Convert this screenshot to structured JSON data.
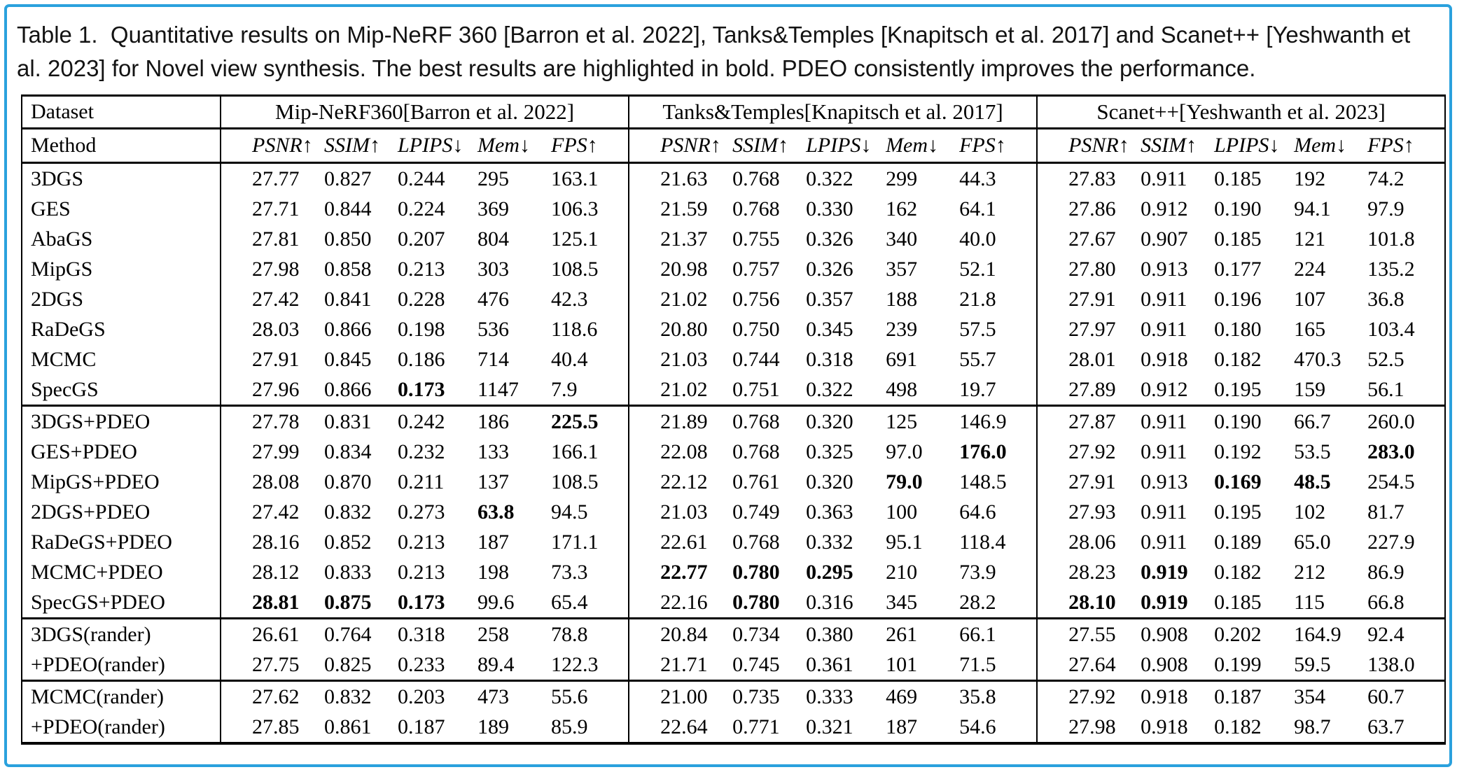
{
  "caption": {
    "text": "Table 1.  Quantitative results on Mip-NeRF 360 [Barron et al. 2022], Tanks&Temples [Knapitsch et al. 2017] and Scanet++ [Yeshwanth et al. 2023] for Novel view synthesis. The best results are highlighted in bold. PDEO consistently improves the performance."
  },
  "table": {
    "corner": {
      "dataset_label": "Dataset",
      "method_label": "Method"
    },
    "group_headers": [
      "Mip-NeRF360[Barron et al. 2022]",
      "Tanks&Temples[Knapitsch et al. 2017]",
      "Scanet++[Yeshwanth et al. 2023]"
    ],
    "metric_headers": [
      "PSNR↑",
      "SSIM↑",
      "LPIPS↓",
      "Mem↓",
      "FPS↑"
    ],
    "section_start_rows": [
      8,
      15,
      17
    ],
    "rows": [
      {
        "method": "3DGS",
        "values": [
          "27.77",
          "0.827",
          "0.244",
          "295",
          "163.1",
          "21.63",
          "0.768",
          "0.322",
          "299",
          "44.3",
          "27.83",
          "0.911",
          "0.185",
          "192",
          "74.2"
        ],
        "bold": []
      },
      {
        "method": "GES",
        "values": [
          "27.71",
          "0.844",
          "0.224",
          "369",
          "106.3",
          "21.59",
          "0.768",
          "0.330",
          "162",
          "64.1",
          "27.86",
          "0.912",
          "0.190",
          "94.1",
          "97.9"
        ],
        "bold": []
      },
      {
        "method": "AbaGS",
        "values": [
          "27.81",
          "0.850",
          "0.207",
          "804",
          "125.1",
          "21.37",
          "0.755",
          "0.326",
          "340",
          "40.0",
          "27.67",
          "0.907",
          "0.185",
          "121",
          "101.8"
        ],
        "bold": []
      },
      {
        "method": "MipGS",
        "values": [
          "27.98",
          "0.858",
          "0.213",
          "303",
          "108.5",
          "20.98",
          "0.757",
          "0.326",
          "357",
          "52.1",
          "27.80",
          "0.913",
          "0.177",
          "224",
          "135.2"
        ],
        "bold": []
      },
      {
        "method": "2DGS",
        "values": [
          "27.42",
          "0.841",
          "0.228",
          "476",
          "42.3",
          "21.02",
          "0.756",
          "0.357",
          "188",
          "21.8",
          "27.91",
          "0.911",
          "0.196",
          "107",
          "36.8"
        ],
        "bold": []
      },
      {
        "method": "RaDeGS",
        "values": [
          "28.03",
          "0.866",
          "0.198",
          "536",
          "118.6",
          "20.80",
          "0.750",
          "0.345",
          "239",
          "57.5",
          "27.97",
          "0.911",
          "0.180",
          "165",
          "103.4"
        ],
        "bold": []
      },
      {
        "method": "MCMC",
        "values": [
          "27.91",
          "0.845",
          "0.186",
          "714",
          "40.4",
          "21.03",
          "0.744",
          "0.318",
          "691",
          "55.7",
          "28.01",
          "0.918",
          "0.182",
          "470.3",
          "52.5"
        ],
        "bold": []
      },
      {
        "method": "SpecGS",
        "values": [
          "27.96",
          "0.866",
          "0.173",
          "1147",
          "7.9",
          "21.02",
          "0.751",
          "0.322",
          "498",
          "19.7",
          "27.89",
          "0.912",
          "0.195",
          "159",
          "56.1"
        ],
        "bold": [
          2
        ]
      },
      {
        "method": "3DGS+PDEO",
        "values": [
          "27.78",
          "0.831",
          "0.242",
          "186",
          "225.5",
          "21.89",
          "0.768",
          "0.320",
          "125",
          "146.9",
          "27.87",
          "0.911",
          "0.190",
          "66.7",
          "260.0"
        ],
        "bold": [
          4
        ]
      },
      {
        "method": "GES+PDEO",
        "values": [
          "27.99",
          "0.834",
          "0.232",
          "133",
          "166.1",
          "22.08",
          "0.768",
          "0.325",
          "97.0",
          "176.0",
          "27.92",
          "0.911",
          "0.192",
          "53.5",
          "283.0"
        ],
        "bold": [
          9,
          14
        ]
      },
      {
        "method": "MipGS+PDEO",
        "values": [
          "28.08",
          "0.870",
          "0.211",
          "137",
          "108.5",
          "22.12",
          "0.761",
          "0.320",
          "79.0",
          "148.5",
          "27.91",
          "0.913",
          "0.169",
          "48.5",
          "254.5"
        ],
        "bold": [
          8,
          12,
          13
        ]
      },
      {
        "method": "2DGS+PDEO",
        "values": [
          "27.42",
          "0.832",
          "0.273",
          "63.8",
          "94.5",
          "21.03",
          "0.749",
          "0.363",
          "100",
          "64.6",
          "27.93",
          "0.911",
          "0.195",
          "102",
          "81.7"
        ],
        "bold": [
          3
        ]
      },
      {
        "method": "RaDeGS+PDEO",
        "values": [
          "28.16",
          "0.852",
          "0.213",
          "187",
          "171.1",
          "22.61",
          "0.768",
          "0.332",
          "95.1",
          "118.4",
          "28.06",
          "0.911",
          "0.189",
          "65.0",
          "227.9"
        ],
        "bold": []
      },
      {
        "method": "MCMC+PDEO",
        "values": [
          "28.12",
          "0.833",
          "0.213",
          "198",
          "73.3",
          "22.77",
          "0.780",
          "0.295",
          "210",
          "73.9",
          "28.23",
          "0.919",
          "0.182",
          "212",
          "86.9"
        ],
        "bold": [
          5,
          6,
          7,
          11
        ]
      },
      {
        "method": "SpecGS+PDEO",
        "values": [
          "28.81",
          "0.875",
          "0.173",
          "99.6",
          "65.4",
          "22.16",
          "0.780",
          "0.316",
          "345",
          "28.2",
          "28.10",
          "0.919",
          "0.185",
          "115",
          "66.8"
        ],
        "bold": [
          0,
          1,
          2,
          6,
          10,
          11
        ]
      },
      {
        "method": "3DGS(rander)",
        "values": [
          "26.61",
          "0.764",
          "0.318",
          "258",
          "78.8",
          "20.84",
          "0.734",
          "0.380",
          "261",
          "66.1",
          "27.55",
          "0.908",
          "0.202",
          "164.9",
          "92.4"
        ],
        "bold": []
      },
      {
        "method": "+PDEO(rander)",
        "values": [
          "27.75",
          "0.825",
          "0.233",
          "89.4",
          "122.3",
          "21.71",
          "0.745",
          "0.361",
          "101",
          "71.5",
          "27.64",
          "0.908",
          "0.199",
          "59.5",
          "138.0"
        ],
        "bold": []
      },
      {
        "method": "MCMC(rander)",
        "values": [
          "27.62",
          "0.832",
          "0.203",
          "473",
          "55.6",
          "21.00",
          "0.735",
          "0.333",
          "469",
          "35.8",
          "27.92",
          "0.918",
          "0.187",
          "354",
          "60.7"
        ],
        "bold": []
      },
      {
        "method": "+PDEO(rander)",
        "values": [
          "27.85",
          "0.861",
          "0.187",
          "189",
          "85.9",
          "22.64",
          "0.771",
          "0.321",
          "187",
          "54.6",
          "27.98",
          "0.918",
          "0.182",
          "98.7",
          "63.7"
        ],
        "bold": []
      }
    ]
  },
  "style": {
    "frame_color": "#2aa1dd",
    "text_color": "#000000",
    "background": "#ffffff"
  }
}
